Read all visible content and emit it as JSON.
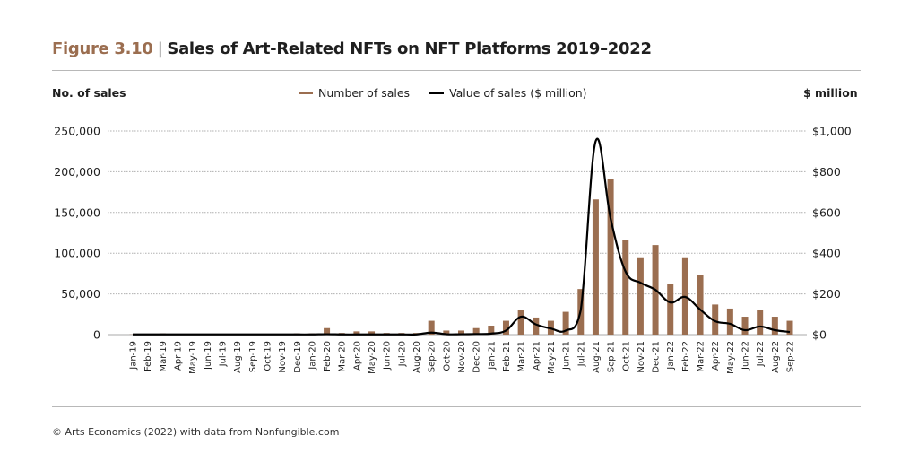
{
  "figure": {
    "number": "Figure 3.10",
    "title": "Sales of Art-Related NFTs on NFT Platforms 2019–2022",
    "source": "© Arts Economics (2022) with data from Nonfungible.com"
  },
  "colors": {
    "bar": "#9b6e50",
    "line": "#000000",
    "figure_number": "#9b6e50",
    "grid": "#b0b0b0"
  },
  "chart_data": {
    "type": "bar",
    "title": "Sales of Art-Related NFTs on NFT Platforms 2019–2022",
    "xlabel": "",
    "ylabel": "No. of sales",
    "y2label": "$ million",
    "ylim": [
      0,
      250000
    ],
    "y2lim": [
      0,
      1000
    ],
    "grid": true,
    "legend_position": "top-center",
    "yticks": [
      "0",
      "50,000",
      "100,000",
      "150,000",
      "200,000",
      "250,000"
    ],
    "y2ticks": [
      "$0",
      "$200",
      "$400",
      "$600",
      "$800",
      "$1,000"
    ],
    "categories": [
      "Jan-19",
      "Feb-19",
      "Mar-19",
      "Apr-19",
      "May-19",
      "Jun-19",
      "Jul-19",
      "Aug-19",
      "Sep-19",
      "Oct-19",
      "Nov-19",
      "Dec-19",
      "Jan-20",
      "Feb-20",
      "Mar-20",
      "Apr-20",
      "May-20",
      "Jun-20",
      "Jul-20",
      "Aug-20",
      "Sep-20",
      "Oct-20",
      "Nov-20",
      "Dec-20",
      "Jan-21",
      "Feb-21",
      "Mar-21",
      "Apr-21",
      "May-21",
      "Jun-21",
      "Jul-21",
      "Aug-21",
      "Sep-21",
      "Oct-21",
      "Nov-21",
      "Dec-21",
      "Jan-22",
      "Feb-22",
      "Mar-22",
      "Apr-22",
      "May-22",
      "Jun-22",
      "Jul-22",
      "Aug-22",
      "Sep-22"
    ],
    "series": [
      {
        "name": "Number of sales",
        "type": "bar",
        "axis": "left",
        "values": [
          300,
          200,
          1500,
          300,
          200,
          200,
          200,
          200,
          200,
          300,
          300,
          1500,
          1500,
          8000,
          2000,
          4000,
          4000,
          2000,
          2000,
          2000,
          17000,
          5000,
          5000,
          8000,
          11000,
          17000,
          30000,
          21000,
          17000,
          28000,
          56000,
          166000,
          191000,
          116000,
          95000,
          110000,
          62000,
          95000,
          73000,
          37000,
          32000,
          22000,
          30000,
          22000,
          17000
        ]
      },
      {
        "name": "Value of sales ($ million)",
        "type": "line",
        "axis": "right",
        "values": [
          1,
          1,
          1,
          1,
          1,
          1,
          1,
          1,
          1,
          1,
          1,
          1,
          1,
          2,
          1,
          1,
          1,
          1,
          1,
          1,
          10,
          2,
          2,
          3,
          5,
          20,
          88,
          50,
          30,
          20,
          120,
          950,
          570,
          310,
          255,
          220,
          158,
          185,
          123,
          66,
          53,
          22,
          40,
          22,
          13
        ]
      }
    ]
  }
}
